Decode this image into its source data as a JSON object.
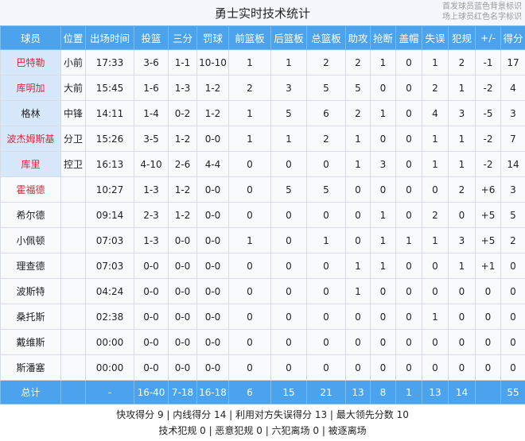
{
  "title": "勇士实时技术统计",
  "legend": [
    "首发球员蓝色背景标识",
    "场上球员红色名字标识"
  ],
  "colors": {
    "header": "#4aa3ec",
    "starter_bg": "#d7e8fb",
    "on_court_name": "#d8283a"
  },
  "columns": [
    "球员",
    "位置",
    "出场时间",
    "投篮",
    "三分",
    "罚球",
    "前篮板",
    "后篮板",
    "总篮板",
    "助攻",
    "抢断",
    "盖帽",
    "失误",
    "犯规",
    "+/-",
    "得分"
  ],
  "players": [
    {
      "name": "巴特勒",
      "starter": true,
      "on_court": true,
      "stats": [
        "小前",
        "17:33",
        "3-6",
        "1-1",
        "10-10",
        "1",
        "1",
        "2",
        "2",
        "1",
        "0",
        "1",
        "2",
        "-1",
        "17"
      ]
    },
    {
      "name": "库明加",
      "starter": true,
      "on_court": true,
      "stats": [
        "大前",
        "15:45",
        "1-6",
        "1-3",
        "1-2",
        "2",
        "3",
        "5",
        "5",
        "0",
        "0",
        "2",
        "1",
        "-2",
        "4"
      ]
    },
    {
      "name": "格林",
      "starter": true,
      "on_court": false,
      "stats": [
        "中锋",
        "14:11",
        "1-4",
        "0-2",
        "1-2",
        "1",
        "5",
        "6",
        "2",
        "1",
        "0",
        "4",
        "3",
        "-5",
        "3"
      ]
    },
    {
      "name": "波杰姆斯基",
      "starter": true,
      "on_court": true,
      "stats": [
        "分卫",
        "15:26",
        "3-5",
        "1-2",
        "0-0",
        "1",
        "1",
        "2",
        "1",
        "0",
        "0",
        "1",
        "1",
        "-2",
        "7"
      ]
    },
    {
      "name": "库里",
      "starter": true,
      "on_court": true,
      "stats": [
        "控卫",
        "16:13",
        "4-10",
        "2-6",
        "4-4",
        "0",
        "0",
        "0",
        "1",
        "3",
        "0",
        "1",
        "1",
        "-2",
        "14"
      ]
    },
    {
      "name": "霍福德",
      "starter": false,
      "on_court": true,
      "stats": [
        "",
        "10:27",
        "1-3",
        "1-2",
        "0-0",
        "0",
        "5",
        "5",
        "0",
        "0",
        "0",
        "0",
        "2",
        "+6",
        "3"
      ]
    },
    {
      "name": "希尔德",
      "starter": false,
      "on_court": false,
      "stats": [
        "",
        "09:14",
        "2-3",
        "1-2",
        "0-0",
        "0",
        "0",
        "0",
        "0",
        "1",
        "0",
        "2",
        "0",
        "+5",
        "5"
      ]
    },
    {
      "name": "小佩顿",
      "starter": false,
      "on_court": false,
      "stats": [
        "",
        "07:03",
        "1-3",
        "0-0",
        "0-0",
        "1",
        "0",
        "1",
        "0",
        "1",
        "1",
        "1",
        "3",
        "+5",
        "2"
      ]
    },
    {
      "name": "理查德",
      "starter": false,
      "on_court": false,
      "stats": [
        "",
        "07:03",
        "0-0",
        "0-0",
        "0-0",
        "0",
        "0",
        "0",
        "1",
        "1",
        "0",
        "0",
        "1",
        "+1",
        "0"
      ]
    },
    {
      "name": "波斯特",
      "starter": false,
      "on_court": false,
      "stats": [
        "",
        "04:24",
        "0-0",
        "0-0",
        "0-0",
        "0",
        "0",
        "0",
        "1",
        "0",
        "0",
        "0",
        "0",
        "0",
        "0"
      ]
    },
    {
      "name": "桑托斯",
      "starter": false,
      "on_court": false,
      "stats": [
        "",
        "02:38",
        "0-0",
        "0-0",
        "0-0",
        "0",
        "0",
        "0",
        "0",
        "0",
        "0",
        "1",
        "0",
        "0",
        "0"
      ]
    },
    {
      "name": "戴维斯",
      "starter": false,
      "on_court": false,
      "stats": [
        "",
        "00:00",
        "0-0",
        "0-0",
        "0-0",
        "0",
        "0",
        "0",
        "0",
        "0",
        "0",
        "0",
        "0",
        "0",
        "0"
      ]
    },
    {
      "name": "斯潘塞",
      "starter": false,
      "on_court": false,
      "stats": [
        "",
        "00:00",
        "0-0",
        "0-0",
        "0-0",
        "0",
        "0",
        "0",
        "0",
        "0",
        "0",
        "0",
        "0",
        "0",
        "0"
      ]
    }
  ],
  "total": {
    "label": "总计",
    "stats": [
      "",
      "-",
      "16-40",
      "7-18",
      "16-18",
      "6",
      "15",
      "21",
      "13",
      "8",
      "1",
      "13",
      "14",
      "",
      "55"
    ]
  },
  "footer": [
    "快攻得分 9 | 内线得分 14 | 利用对方失误得分 13 | 最大领先分数 10",
    "技术犯规 0 | 恶意犯规 0 | 六犯离场 0 | 被逐离场"
  ]
}
